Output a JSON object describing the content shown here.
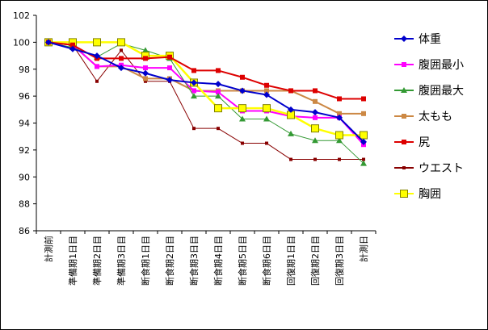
{
  "chart_data": {
    "type": "line",
    "title": "",
    "xlabel": "",
    "ylabel": "",
    "ylim": [
      86,
      102
    ],
    "y_ticks": [
      86,
      88,
      90,
      92,
      94,
      96,
      98,
      100,
      102
    ],
    "categories": [
      "計測前",
      "準備期1日目",
      "準備期2日目",
      "準備期3日目",
      "断食期1日目",
      "断食期2日目",
      "断食期3日目",
      "断食期4日目",
      "断食期5日目",
      "断食期6日目",
      "回復期1日目",
      "回復期2日目",
      "回復期3日目",
      "計測日"
    ],
    "grid": false,
    "legend_position": "right",
    "series": [
      {
        "name": "体重",
        "color": "#0000cc",
        "marker": "diamond",
        "values": [
          100,
          99.5,
          99.0,
          98.1,
          97.7,
          97.2,
          97.0,
          96.9,
          96.4,
          96.1,
          95.0,
          94.8,
          94.4,
          92.6
        ]
      },
      {
        "name": "腹囲最小",
        "color": "#ff00ff",
        "marker": "square",
        "values": [
          100,
          99.8,
          98.2,
          98.3,
          98.1,
          98.1,
          96.4,
          96.3,
          94.9,
          94.9,
          94.5,
          94.4,
          94.4,
          92.4
        ]
      },
      {
        "name": "腹囲最大",
        "color": "#339933",
        "marker": "triangle",
        "values": [
          100,
          99.6,
          98.9,
          99.9,
          99.4,
          98.8,
          96.0,
          96.0,
          94.3,
          94.3,
          93.2,
          92.7,
          92.7,
          91.0
        ]
      },
      {
        "name": "太もも",
        "color": "#cc8844",
        "marker": "square",
        "values": [
          100,
          99.8,
          98.2,
          98.2,
          97.3,
          97.3,
          96.4,
          96.4,
          96.4,
          96.4,
          96.4,
          95.6,
          94.7,
          94.7
        ]
      },
      {
        "name": "尻",
        "color": "#dd0000",
        "marker": "square",
        "values": [
          100,
          99.8,
          98.8,
          98.8,
          98.8,
          98.9,
          97.9,
          97.9,
          97.4,
          96.8,
          96.4,
          96.4,
          95.8,
          95.8
        ]
      },
      {
        "name": "ウエスト",
        "color": "#880000",
        "marker": "dot",
        "values": [
          100,
          99.8,
          97.1,
          99.4,
          97.1,
          97.1,
          93.6,
          93.6,
          92.5,
          92.5,
          91.3,
          91.3,
          91.3,
          91.3
        ]
      },
      {
        "name": "胸囲",
        "color": "#ffff00",
        "marker": "square-outline",
        "values": [
          100,
          100,
          100,
          100,
          99.0,
          99.0,
          97.0,
          95.1,
          95.1,
          95.1,
          94.6,
          93.6,
          93.1,
          93.1
        ]
      }
    ]
  }
}
